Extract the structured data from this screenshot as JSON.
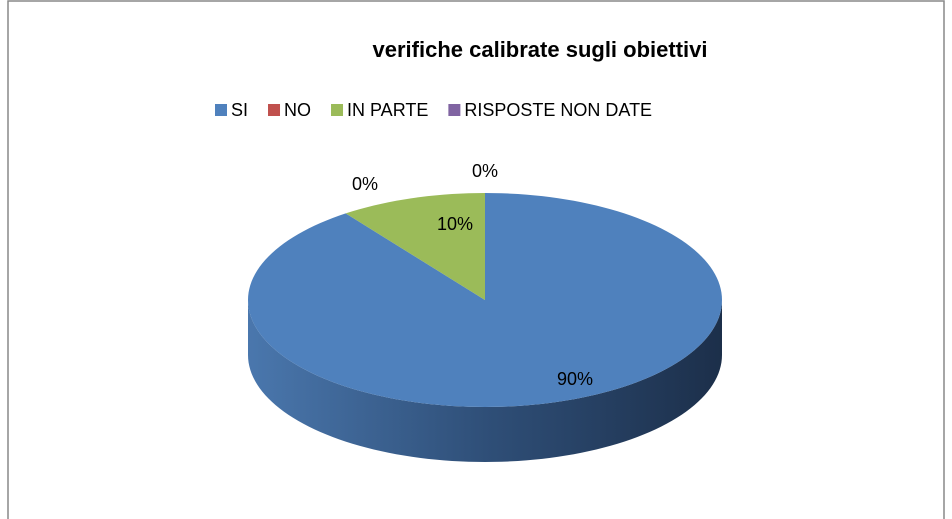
{
  "chart_data": {
    "type": "pie3d",
    "title": "verifiche calibrate sugli obiettivi",
    "categories": [
      "SI",
      "NO",
      "IN PARTE",
      "RISPOSTE NON DATE"
    ],
    "values": [
      90,
      0,
      10,
      0
    ],
    "value_labels": [
      "90%",
      "0%",
      "10%",
      "0%"
    ],
    "colors": [
      "#4f81bd",
      "#c0504d",
      "#9bbb59",
      "#8064a2"
    ],
    "legend": "top"
  }
}
